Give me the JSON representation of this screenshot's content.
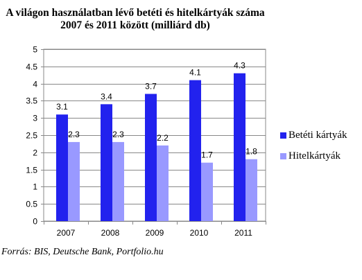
{
  "title": {
    "line1": "A világon használatban lévő betéti és hitelkártyák száma",
    "line2": "2007 és 2011 között (milliárd db)"
  },
  "source": "Forrás: BIS, Deutsche Bank, Portfolio.hu",
  "colors": {
    "series1": "#2222ee",
    "series2": "#9999ff",
    "grid": "#888888"
  },
  "chart_data": {
    "type": "bar",
    "categories": [
      "2007",
      "2008",
      "2009",
      "2010",
      "2011"
    ],
    "series": [
      {
        "name": "Betéti kártyák",
        "values": [
          3.1,
          3.4,
          3.7,
          4.1,
          4.3
        ],
        "labels": [
          "3.1",
          "3.4",
          "3.7",
          "4.1",
          "4.3"
        ]
      },
      {
        "name": "Hitelkártyák",
        "values": [
          2.3,
          2.3,
          2.2,
          1.7,
          1.8
        ],
        "labels": [
          "2.3",
          "2.3",
          "2.2",
          "1.7",
          "1.8"
        ]
      }
    ],
    "yticks": [
      "0",
      "0.5",
      "1",
      "1.5",
      "2",
      "2.5",
      "3",
      "3.5",
      "4",
      "4.5",
      "5"
    ],
    "ylim": [
      0,
      5
    ],
    "grid": true,
    "legend": "right"
  }
}
